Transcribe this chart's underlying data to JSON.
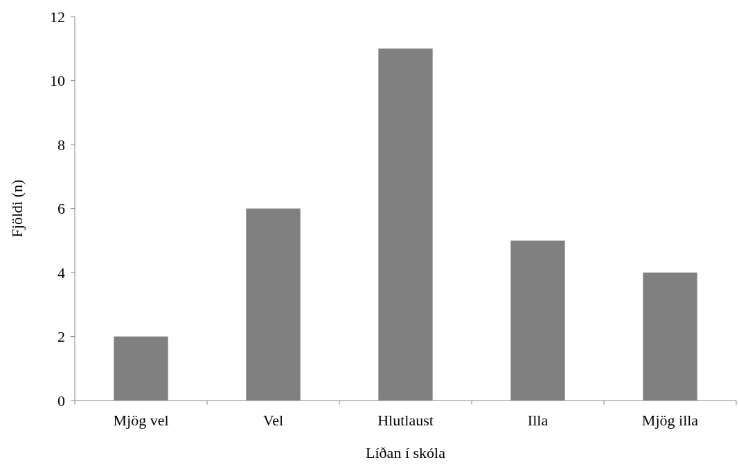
{
  "chart_data": {
    "type": "bar",
    "xlabel": "Líðan í skóla",
    "ylabel": "Fjöldi (n)",
    "categories": [
      "Mjög vel",
      "Vel",
      "Hlutlaust",
      "Illa",
      "Mjög illa"
    ],
    "values": [
      2,
      6,
      11,
      5,
      4
    ],
    "color": "#808080",
    "ylim": [
      0,
      12
    ],
    "yticks": [
      0,
      2,
      4,
      6,
      8,
      10,
      12
    ],
    "grid": false
  }
}
